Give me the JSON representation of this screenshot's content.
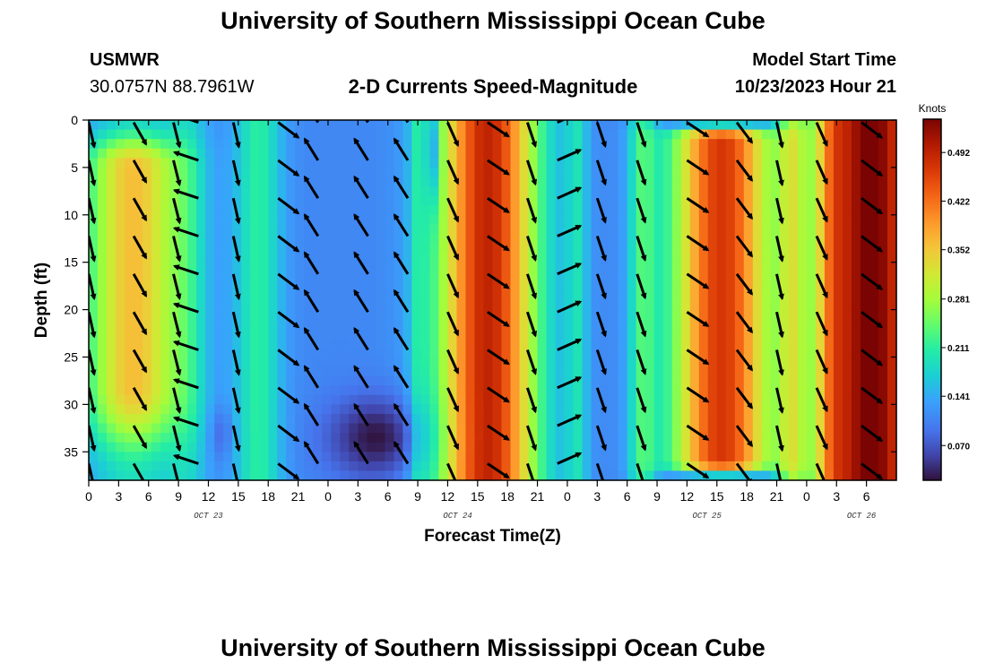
{
  "header": {
    "title": "University of Southern Mississippi Ocean Cube",
    "station": "USMWR",
    "coords": "30.0757N  88.7961W",
    "subtitle": "2-D Currents Speed-Magnitude",
    "model_start_label": "Model Start Time",
    "model_start_value": "10/23/2023 Hour 21"
  },
  "footer": {
    "title": "University of Southern Mississippi Ocean Cube"
  },
  "colors": {
    "arrow": "#000000",
    "axis": "#000000",
    "background": "#ffffff"
  },
  "chart_data": {
    "type": "heatmap",
    "title": "2-D Currents Speed-Magnitude",
    "xlabel": "Forecast Time(Z)",
    "ylabel": "Depth (ft)",
    "x_range_hours": [
      0,
      81
    ],
    "y_range_ft": [
      0,
      38
    ],
    "y_reversed": true,
    "x_ticks": [
      {
        "h": 0,
        "label": "0"
      },
      {
        "h": 3,
        "label": "3"
      },
      {
        "h": 6,
        "label": "6"
      },
      {
        "h": 9,
        "label": "9"
      },
      {
        "h": 12,
        "label": "12"
      },
      {
        "h": 15,
        "label": "15"
      },
      {
        "h": 18,
        "label": "18"
      },
      {
        "h": 21,
        "label": "21"
      },
      {
        "h": 24,
        "label": "0"
      },
      {
        "h": 27,
        "label": "3"
      },
      {
        "h": 30,
        "label": "6"
      },
      {
        "h": 33,
        "label": "9"
      },
      {
        "h": 36,
        "label": "12"
      },
      {
        "h": 39,
        "label": "15"
      },
      {
        "h": 42,
        "label": "18"
      },
      {
        "h": 45,
        "label": "21"
      },
      {
        "h": 48,
        "label": "0"
      },
      {
        "h": 51,
        "label": "3"
      },
      {
        "h": 54,
        "label": "6"
      },
      {
        "h": 57,
        "label": "9"
      },
      {
        "h": 60,
        "label": "12"
      },
      {
        "h": 63,
        "label": "15"
      },
      {
        "h": 66,
        "label": "18"
      },
      {
        "h": 69,
        "label": "21"
      },
      {
        "h": 72,
        "label": "0"
      },
      {
        "h": 75,
        "label": "3"
      },
      {
        "h": 78,
        "label": "6"
      }
    ],
    "date_labels": [
      {
        "h": 12,
        "label": "OCT 23"
      },
      {
        "h": 37,
        "label": "OCT 24"
      },
      {
        "h": 62,
        "label": "OCT 25"
      },
      {
        "h": 77.5,
        "label": "OCT 26"
      }
    ],
    "y_ticks": [
      0,
      5,
      10,
      15,
      20,
      25,
      30,
      35
    ],
    "colorbar": {
      "unit": "Knots",
      "min": 0.02,
      "max": 0.54,
      "tick_values": [
        0.07,
        0.141,
        0.211,
        0.281,
        0.352,
        0.422,
        0.492
      ],
      "tick_labels": [
        "0.070",
        "0.141",
        "0.211",
        "0.281",
        "0.352",
        "0.422",
        "0.492"
      ],
      "stops": [
        [
          0.0,
          "#30123b"
        ],
        [
          0.07,
          "#4145ab"
        ],
        [
          0.14,
          "#4675ed"
        ],
        [
          0.22,
          "#39a2fc"
        ],
        [
          0.29,
          "#1bcfd4"
        ],
        [
          0.36,
          "#24eca6"
        ],
        [
          0.43,
          "#61fc6c"
        ],
        [
          0.5,
          "#a4fc3b"
        ],
        [
          0.57,
          "#d1e834"
        ],
        [
          0.64,
          "#f3c63a"
        ],
        [
          0.71,
          "#fe9b2d"
        ],
        [
          0.79,
          "#f36315"
        ],
        [
          0.86,
          "#d93806"
        ],
        [
          0.93,
          "#b11901"
        ],
        [
          1.0,
          "#7a0403"
        ]
      ]
    },
    "speed_bands": [
      {
        "c": 4.5,
        "w": 3.5,
        "amp": 0.25,
        "top": 0.3,
        "bot": 0.32,
        "z0": 5,
        "z1": 28
      },
      {
        "c": 17,
        "w": 1.7,
        "amp": 0.1
      },
      {
        "c": 10,
        "w": 1.4,
        "amp": 0.05
      },
      {
        "c": 40,
        "w": 3.5,
        "amp": 0.38,
        "bot": 0.03,
        "z1": 35
      },
      {
        "c": 33,
        "w": 0.6,
        "amp": 0.05
      },
      {
        "c": 49,
        "w": 0.8,
        "amp": 0.07
      },
      {
        "c": 55.5,
        "w": 1.0,
        "amp": 0.1
      },
      {
        "c": 63.5,
        "w": 3.5,
        "amp": 0.36,
        "top": 0.05,
        "bot": 0.02,
        "z0": 2,
        "z1": 36
      },
      {
        "c": 70.5,
        "w": 1.0,
        "amp": 0.12
      },
      {
        "c": 78.5,
        "w": 3.8,
        "amp": 0.44
      },
      {
        "c": 74.5,
        "w": 1.0,
        "amp": 0.08
      }
    ],
    "background_speed": 0.11,
    "low_spots": [
      {
        "h": 29,
        "z": 33.5,
        "sh": 3.5,
        "sz": 3.0,
        "amp": 0.09
      },
      {
        "h": 34.5,
        "z": 3,
        "sh": 0.5,
        "sz": 4.0,
        "amp": 0.08
      },
      {
        "h": 13.3,
        "z": 33,
        "sh": 0.8,
        "sz": 2.0,
        "amp": 0.04
      }
    ],
    "arrow_columns": [
      {
        "h": 0,
        "dx": 0.2,
        "dy": 0.9
      },
      {
        "h": 4.5,
        "dx": 0.4,
        "dy": 0.7
      },
      {
        "h": 8.5,
        "dx": 0.2,
        "dy": 0.8
      },
      {
        "h": 11,
        "dx": -0.9,
        "dy": -0.3
      },
      {
        "h": 14.5,
        "dx": 0.2,
        "dy": 0.9
      },
      {
        "h": 19,
        "dx": 0.8,
        "dy": 0.6
      },
      {
        "h": 23,
        "dx": -0.5,
        "dy": -0.8
      },
      {
        "h": 28,
        "dx": -0.5,
        "dy": -0.8
      },
      {
        "h": 32,
        "dx": -0.5,
        "dy": -0.8
      },
      {
        "h": 36,
        "dx": 0.4,
        "dy": 0.9
      },
      {
        "h": 40,
        "dx": 0.9,
        "dy": 0.6
      },
      {
        "h": 44,
        "dx": 0.3,
        "dy": 0.9
      },
      {
        "h": 47,
        "dx": 0.9,
        "dy": -0.4
      },
      {
        "h": 51,
        "dx": 0.3,
        "dy": 0.9
      },
      {
        "h": 55,
        "dx": 0.3,
        "dy": 0.9
      },
      {
        "h": 60,
        "dx": 0.9,
        "dy": 0.6
      },
      {
        "h": 65,
        "dx": 0.6,
        "dy": 0.8
      },
      {
        "h": 69,
        "dx": 0.2,
        "dy": 0.9
      },
      {
        "h": 73,
        "dx": 0.4,
        "dy": 0.9
      },
      {
        "h": 77.5,
        "dx": 0.8,
        "dy": 0.6
      }
    ],
    "arrow_depths": [
      1,
      5,
      9,
      13,
      17,
      21,
      25,
      29,
      33,
      37
    ]
  }
}
